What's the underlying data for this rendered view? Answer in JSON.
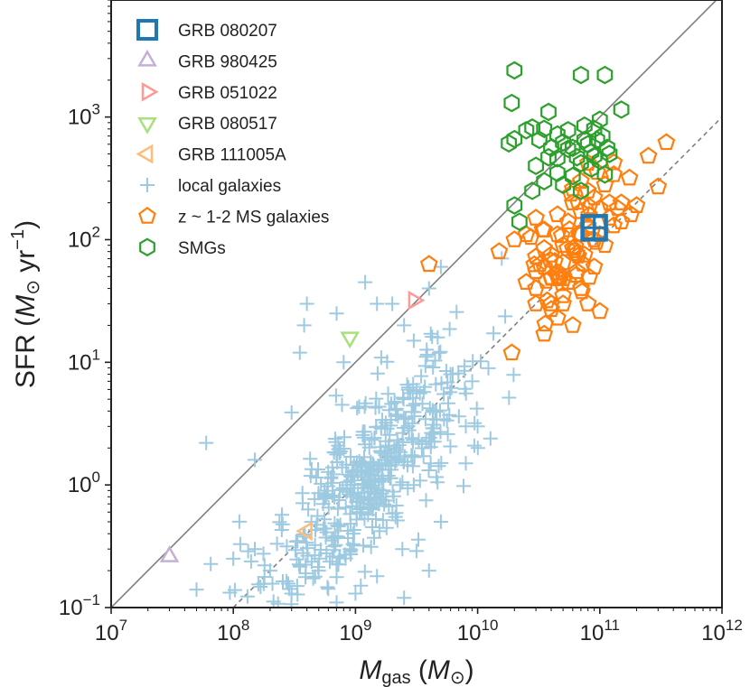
{
  "chart_data": {
    "type": "scatter",
    "x_scale": "log",
    "y_scale": "log",
    "xlim": [
      10000000,
      1000000000000
    ],
    "ylim": [
      0.1,
      9000
    ],
    "x_ticks": [
      {
        "value": 10000000,
        "base": "10",
        "exp": "7"
      },
      {
        "value": 100000000,
        "base": "10",
        "exp": "8"
      },
      {
        "value": 1000000000,
        "base": "10",
        "exp": "9"
      },
      {
        "value": 10000000000,
        "base": "10",
        "exp": "10"
      },
      {
        "value": 100000000000,
        "base": "10",
        "exp": "11"
      },
      {
        "value": 1000000000000,
        "base": "10",
        "exp": "12"
      }
    ],
    "y_ticks": [
      {
        "value": 0.1,
        "base": "10",
        "exp": "−1"
      },
      {
        "value": 1,
        "base": "10",
        "exp": "0"
      },
      {
        "value": 10,
        "base": "10",
        "exp": "1"
      },
      {
        "value": 100,
        "base": "10",
        "exp": "2"
      },
      {
        "value": 1000,
        "base": "10",
        "exp": "3"
      }
    ],
    "xlabel": {
      "main": "M",
      "sub": "gas",
      "unit_open": " (M",
      "unit_sym": "⊙",
      "unit_close": ")"
    },
    "ylabel": {
      "pre": "SFR (",
      "m": "M",
      "sym": "⊙",
      "mid": " yr",
      "sup": "−1",
      "close": ")"
    },
    "reference_lines": [
      {
        "name": "upper-relation",
        "style": "solid",
        "color": "#7f7f7f",
        "x": [
          10000000,
          1000000000000
        ],
        "y": [
          0.1,
          10000
        ]
      },
      {
        "name": "lower-relation",
        "style": "dashed",
        "color": "#7f7f7f",
        "x": [
          100000000,
          1000000000000
        ],
        "y": [
          0.1,
          1000
        ]
      }
    ],
    "series": [
      {
        "name": "GRB 080207",
        "marker": "square",
        "color": "#1f77b4",
        "size": 13,
        "stroke": 4.5,
        "points": [
          [
            90000000000,
            125
          ]
        ]
      },
      {
        "name": "GRB 980425",
        "marker": "triangle-up",
        "color": "#c5b0d5",
        "size": 10,
        "stroke": 2.5,
        "points": [
          [
            30000000,
            0.26
          ]
        ]
      },
      {
        "name": "GRB 051022",
        "marker": "triangle-right",
        "color": "#ff9896",
        "size": 10,
        "stroke": 2.5,
        "points": [
          [
            3000000000,
            32
          ]
        ]
      },
      {
        "name": "GRB 080517",
        "marker": "triangle-down",
        "color": "#a8e07a",
        "size": 10,
        "stroke": 2.5,
        "points": [
          [
            900000000,
            16
          ]
        ]
      },
      {
        "name": "GRB 111005A",
        "marker": "triangle-left",
        "color": "#ffbb78",
        "size": 10,
        "stroke": 2.5,
        "points": [
          [
            400000000,
            0.42
          ]
        ]
      },
      {
        "name": "local galaxies",
        "marker": "plus",
        "color": "#9ecae1",
        "size": 8,
        "stroke": 2,
        "generated": true,
        "points": [
          [
            60000000,
            2.2
          ],
          [
            150000000,
            1.6
          ],
          [
            300000000,
            3.9
          ],
          [
            350000000,
            12
          ],
          [
            380000000,
            20
          ],
          [
            400000000,
            30
          ],
          [
            700000000,
            25
          ],
          [
            800000000,
            10
          ],
          [
            1200000000,
            45
          ],
          [
            1500000000,
            30
          ],
          [
            2000000000,
            30
          ],
          [
            2500000000,
            20
          ],
          [
            4000000000,
            40
          ],
          [
            5000000000,
            60
          ],
          [
            3000000000,
            15
          ],
          [
            6000000000,
            8
          ],
          [
            8000000000,
            3
          ],
          [
            10000000000,
            3
          ],
          [
            3000000000,
            1
          ],
          [
            5000000000,
            0.5
          ],
          [
            8000000000,
            1.5
          ],
          [
            200000000,
            0.2
          ],
          [
            1500000000,
            0.18
          ],
          [
            2500000000,
            0.12
          ],
          [
            700000000,
            0.11
          ],
          [
            50000000,
            0.14
          ],
          [
            100000000,
            0.25
          ],
          [
            150000000,
            0.3
          ],
          [
            1000000000,
            0.13
          ],
          [
            300000000,
            0.13
          ],
          [
            900000000,
            0.3
          ],
          [
            500000000,
            0.2
          ],
          [
            4000000000,
            0.2
          ]
        ],
        "cloud": {
          "count": 480,
          "center_log_mass": 9.1,
          "mass_spread": 0.42,
          "slope": 1.0,
          "intercept": -9.05,
          "scatter": 0.33,
          "seed": 17
        }
      },
      {
        "name": "z ~ 1-2 MS galaxies",
        "marker": "pentagon",
        "color": "#ff7f0e",
        "size": 9,
        "stroke": 2.2,
        "points": [
          [
            4000000000,
            63
          ],
          [
            15000000000,
            80
          ],
          [
            20000000000,
            100
          ],
          [
            25000000000,
            110
          ],
          [
            30000000000,
            150
          ],
          [
            35000000000,
            60
          ],
          [
            30000000000,
            40
          ],
          [
            40000000000,
            30
          ],
          [
            45000000000,
            50
          ],
          [
            50000000000,
            90
          ],
          [
            55000000000,
            140
          ],
          [
            60000000000,
            200
          ],
          [
            70000000000,
            170
          ],
          [
            80000000000,
            250
          ],
          [
            90000000000,
            220
          ],
          [
            100000000000,
            180
          ],
          [
            120000000000,
            150
          ],
          [
            150000000000,
            200
          ],
          [
            200000000000,
            190
          ],
          [
            250000000000,
            480
          ],
          [
            300000000000,
            270
          ],
          [
            350000000000,
            620
          ],
          [
            35000000000,
            17
          ],
          [
            40000000000,
            27
          ],
          [
            45000000000,
            23
          ],
          [
            50000000000,
            35
          ],
          [
            70000000000,
            40
          ],
          [
            80000000000,
            30
          ],
          [
            100000000000,
            26
          ],
          [
            60000000000,
            20
          ],
          [
            40000000000,
            75
          ],
          [
            50000000000,
            65
          ],
          [
            60000000000,
            85
          ],
          [
            70000000000,
            110
          ],
          [
            80000000000,
            130
          ],
          [
            90000000000,
            100
          ],
          [
            100000000000,
            110
          ],
          [
            110000000000,
            90
          ],
          [
            130000000000,
            130
          ],
          [
            150000000000,
            140
          ],
          [
            180000000000,
            160
          ],
          [
            60000000000,
            260
          ],
          [
            70000000000,
            300
          ],
          [
            80000000000,
            420
          ],
          [
            45000000000,
            110
          ],
          [
            35000000000,
            85
          ],
          [
            30000000000,
            55
          ],
          [
            55000000000,
            45
          ],
          [
            65000000000,
            55
          ],
          [
            75000000000,
            75
          ],
          [
            30000000000,
            30
          ],
          [
            25000000000,
            45
          ],
          [
            120000000000,
            200
          ],
          [
            140000000000,
            180
          ],
          [
            90000000000,
            60
          ],
          [
            50000000000,
            30
          ],
          [
            35000000000,
            120
          ],
          [
            45000000000,
            160
          ],
          [
            110000000000,
            280
          ],
          [
            130000000000,
            340
          ]
        ],
        "cloud": {
          "count": 40,
          "center_log_mass": 10.72,
          "mass_spread": 0.18,
          "slope": 1.0,
          "intercept": -8.85,
          "scatter": 0.22,
          "seed": 91
        }
      },
      {
        "name": "SMGs",
        "marker": "hexagon",
        "color": "#2ca02c",
        "size": 9,
        "stroke": 2.2,
        "points": [
          [
            20000000000,
            2400
          ],
          [
            19000000000,
            1300
          ],
          [
            38000000000,
            1100
          ],
          [
            70000000000,
            2200
          ],
          [
            110000000000,
            2200
          ],
          [
            150000000000,
            1150
          ],
          [
            25000000000,
            780
          ],
          [
            28000000000,
            820
          ],
          [
            32000000000,
            650
          ],
          [
            35000000000,
            800
          ],
          [
            45000000000,
            720
          ],
          [
            55000000000,
            780
          ],
          [
            60000000000,
            560
          ],
          [
            75000000000,
            650
          ],
          [
            90000000000,
            800
          ],
          [
            100000000000,
            950
          ],
          [
            18000000000,
            610
          ],
          [
            20000000000,
            660
          ],
          [
            45000000000,
            460
          ],
          [
            55000000000,
            550
          ],
          [
            70000000000,
            420
          ],
          [
            80000000000,
            600
          ],
          [
            90000000000,
            480
          ],
          [
            60000000000,
            330
          ],
          [
            85000000000,
            380
          ],
          [
            110000000000,
            340
          ],
          [
            30000000000,
            400
          ],
          [
            38000000000,
            470
          ],
          [
            45000000000,
            350
          ],
          [
            20000000000,
            190
          ],
          [
            22000000000,
            140
          ],
          [
            28000000000,
            250
          ],
          [
            50000000000,
            280
          ],
          [
            70000000000,
            250
          ],
          [
            100000000000,
            440
          ],
          [
            120000000000,
            500
          ],
          [
            75000000000,
            850
          ],
          [
            95000000000,
            650
          ],
          [
            105000000000,
            700
          ],
          [
            65000000000,
            470
          ],
          [
            40000000000,
            560
          ],
          [
            50000000000,
            620
          ],
          [
            35000000000,
            300
          ],
          [
            85000000000,
            520
          ],
          [
            115000000000,
            560
          ]
        ]
      }
    ],
    "legend": {
      "position": "upper-left"
    }
  }
}
